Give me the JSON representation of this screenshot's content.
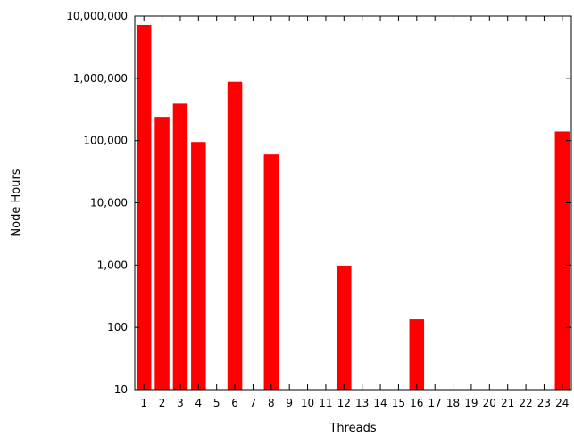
{
  "chart_data": {
    "type": "bar",
    "xlabel": "Threads",
    "ylabel": "Node Hours",
    "yscale": "log",
    "ylim": [
      10,
      10000000
    ],
    "yticks": [
      10,
      100,
      1000,
      10000,
      100000,
      1000000,
      10000000
    ],
    "ytick_labels": [
      "10",
      "100",
      "1,000",
      "10,000",
      "100,000",
      "1,000,000",
      "10,000,000"
    ],
    "categories": [
      "1",
      "2",
      "3",
      "4",
      "5",
      "6",
      "7",
      "8",
      "9",
      "10",
      "11",
      "12",
      "13",
      "14",
      "15",
      "16",
      "17",
      "18",
      "19",
      "20",
      "21",
      "22",
      "23",
      "24"
    ],
    "values": [
      7200000,
      240000,
      390000,
      95000,
      null,
      880000,
      null,
      60000,
      null,
      null,
      null,
      980,
      null,
      null,
      null,
      135,
      null,
      null,
      null,
      null,
      null,
      null,
      null,
      140000
    ],
    "bar_color": "#ff0000",
    "grid": false,
    "legend": "none"
  }
}
